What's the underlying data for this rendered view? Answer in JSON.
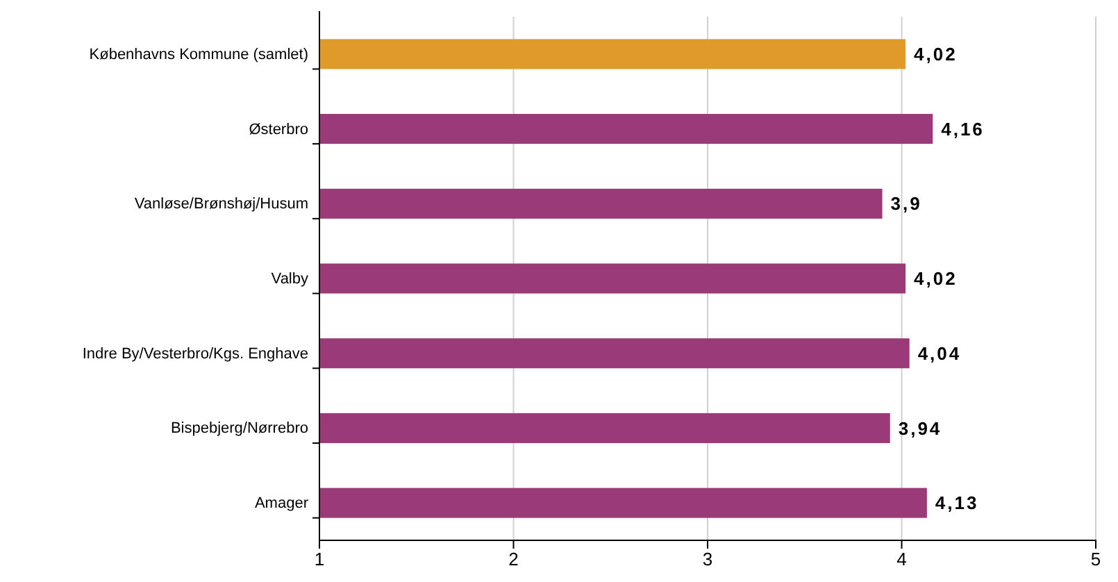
{
  "chart_data": {
    "type": "bar",
    "orientation": "horizontal",
    "categories": [
      "Københavns Kommune (samlet)",
      "Østerbro",
      "Vanløse/Brønshøj/Husum",
      "Valby",
      "Indre By/Vesterbro/Kgs. Enghave",
      "Bispebjerg/Nørrebro",
      "Amager"
    ],
    "values": [
      4.02,
      4.16,
      3.9,
      4.02,
      4.04,
      3.94,
      4.13
    ],
    "colors": [
      "#e09a2a",
      "#9a3a78",
      "#9a3a78",
      "#9a3a78",
      "#9a3a78",
      "#9a3a78",
      "#9a3a78"
    ],
    "value_labels": [
      "4,02",
      "4,16",
      "3,9",
      "4,02",
      "4,04",
      "3,94",
      "4,13"
    ],
    "xlim": [
      1,
      5
    ],
    "xticks": [
      1,
      2,
      3,
      4,
      5
    ],
    "grid": "x"
  }
}
